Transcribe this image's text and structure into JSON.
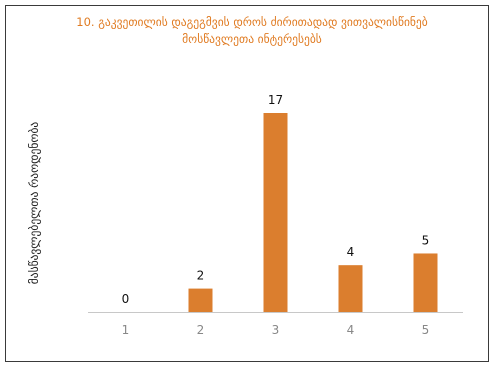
{
  "chart_data": {
    "type": "bar",
    "title_line1": "10. გაკვეთილის დაგეგმვის დროს ძირითადად ვითვალისწინებ",
    "title_line2": "მოსწავლეთა ინტერესებს",
    "ylabel": "მასწავლებელთა რაოდენობა",
    "xlabel": "",
    "categories": [
      "1",
      "2",
      "3",
      "4",
      "5"
    ],
    "values": [
      0,
      2,
      17,
      4,
      5
    ],
    "ylim": [
      0,
      17
    ],
    "grid": false,
    "legend": "none",
    "colors": {
      "bar": "#DB7E2E",
      "title": "#E07B22"
    }
  }
}
